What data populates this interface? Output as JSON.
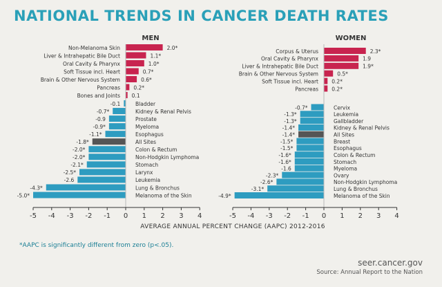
{
  "title": "NATIONAL TRENDS IN CANCER DEATH RATES",
  "footnote": "*AAPC is significantly different from zero (p<.05).",
  "website": "seer.cancer.gov",
  "source": "Source: Annual Report to the Nation",
  "colors": {
    "increase": "#c8244f",
    "decrease": "#2e9cc0",
    "all_sites": "#555555",
    "title": "#2aa0b8"
  },
  "chart_data": [
    {
      "type": "bar",
      "title": "MEN",
      "xlabel": "AVERAGE ANNUAL PERCENT CHANGE (AAPC) 2012-2016",
      "xlim": [
        -5,
        4
      ],
      "ticks": [
        -5,
        -4,
        -3,
        -2,
        -1,
        0,
        1,
        2,
        3,
        4
      ],
      "increasing": [
        {
          "category": "Non-Melanoma Skin",
          "value": 2.0,
          "label": "2.0*"
        },
        {
          "category": "Liver & Intrahepatic Bile Duct",
          "value": 1.1,
          "label": "1.1*"
        },
        {
          "category": "Oral Cavity & Pharynx",
          "value": 1.0,
          "label": "1.0*"
        },
        {
          "category": "Soft Tissue incl. Heart",
          "value": 0.7,
          "label": "0.7*"
        },
        {
          "category": "Brain & Other Nervous System",
          "value": 0.6,
          "label": "0.6*"
        },
        {
          "category": "Pancreas",
          "value": 0.2,
          "label": "0.2*"
        },
        {
          "category": "Bones and Joints",
          "value": 0.1,
          "label": "0.1"
        }
      ],
      "decreasing": [
        {
          "category": "Bladder",
          "value": -0.1,
          "label": "-0.1"
        },
        {
          "category": "Kidney & Renal Pelvis",
          "value": -0.7,
          "label": "-0.7*"
        },
        {
          "category": "Prostate",
          "value": -0.9,
          "label": "-0.9"
        },
        {
          "category": "Myeloma",
          "value": -0.9,
          "label": "-0.9*"
        },
        {
          "category": "Esophagus",
          "value": -1.1,
          "label": "-1.1*"
        },
        {
          "category": "All Sites",
          "value": -1.8,
          "label": "-1.8*",
          "highlight": true
        },
        {
          "category": "Colon & Rectum",
          "value": -2.0,
          "label": "-2.0*"
        },
        {
          "category": "Non-Hodgkin Lymphoma",
          "value": -2.0,
          "label": "-2.0*"
        },
        {
          "category": "Stomach",
          "value": -2.1,
          "label": "-2.1*"
        },
        {
          "category": "Larynx",
          "value": -2.5,
          "label": "-2.5*"
        },
        {
          "category": "Leukemia",
          "value": -2.6,
          "label": "-2.6"
        },
        {
          "category": "Lung & Bronchus",
          "value": -4.3,
          "label": "-4.3*"
        },
        {
          "category": "Melanoma of the Skin",
          "value": -5.0,
          "label": "-5.0*"
        }
      ]
    },
    {
      "type": "bar",
      "title": "WOMEN",
      "xlabel": "AVERAGE ANNUAL PERCENT CHANGE (AAPC) 2012-2016",
      "xlim": [
        -5,
        4
      ],
      "ticks": [
        -5,
        -4,
        -3,
        -2,
        -1,
        0,
        1,
        2,
        3,
        4
      ],
      "increasing": [
        {
          "category": "Corpus & Uterus",
          "value": 2.3,
          "label": "2.3*"
        },
        {
          "category": "Oral Cavity & Pharynx",
          "value": 1.9,
          "label": "1.9"
        },
        {
          "category": "Liver & Intrahepatic Bile Duct",
          "value": 1.9,
          "label": "1.9*"
        },
        {
          "category": "Brain & Other Nervous System",
          "value": 0.5,
          "label": "0.5*"
        },
        {
          "category": "Soft Tissue incl. Heart",
          "value": 0.2,
          "label": "0.2*"
        },
        {
          "category": "Pancreas",
          "value": 0.2,
          "label": "0.2*"
        }
      ],
      "decreasing": [
        {
          "category": "Cervix",
          "value": -0.7,
          "label": "-0.7*"
        },
        {
          "category": "Leukemia",
          "value": -1.3,
          "label": "-1.3*"
        },
        {
          "category": "Gallbladder",
          "value": -1.3,
          "label": "-1.3*"
        },
        {
          "category": "Kidney & Renal Pelvis",
          "value": -1.4,
          "label": "-1.4*"
        },
        {
          "category": "All Sites",
          "value": -1.4,
          "label": "-1.4*",
          "highlight": true
        },
        {
          "category": "Breast",
          "value": -1.5,
          "label": "-1.5*"
        },
        {
          "category": "Esophagus",
          "value": -1.5,
          "label": "-1.5*"
        },
        {
          "category": "Colon & Rectum",
          "value": -1.6,
          "label": "-1.6*"
        },
        {
          "category": "Stomach",
          "value": -1.6,
          "label": "-1.6*"
        },
        {
          "category": "Myeloma",
          "value": -1.6,
          "label": "-1.6"
        },
        {
          "category": "Ovary",
          "value": -2.3,
          "label": "-2.3*"
        },
        {
          "category": "Non-Hodgkin Lymphoma",
          "value": -2.6,
          "label": "-2.6*"
        },
        {
          "category": "Lung & Bronchus",
          "value": -3.1,
          "label": "-3.1*"
        },
        {
          "category": "Melanoma of the Skin",
          "value": -4.9,
          "label": "-4.9*"
        }
      ]
    }
  ]
}
